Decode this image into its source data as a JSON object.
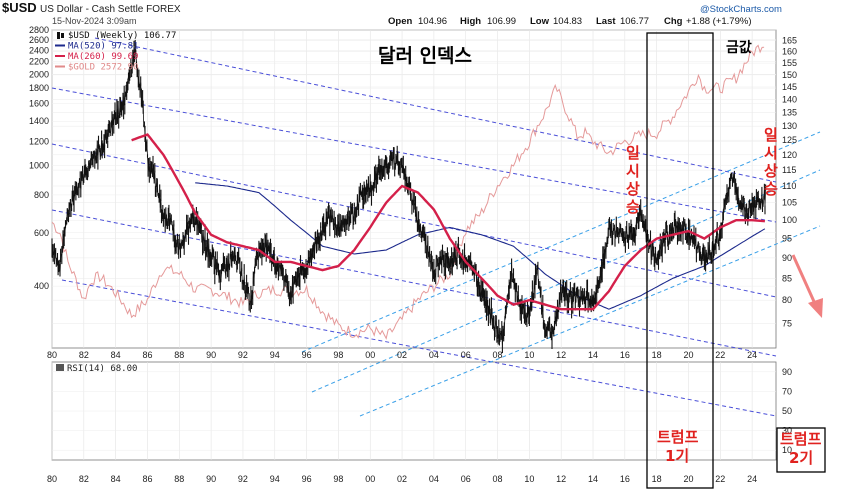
{
  "header": {
    "symbol": "$USD",
    "description": "US Dollar - Cash Settle FOREX",
    "date": "15-Nov-2024 3:09am",
    "brand": "@StockCharts.com",
    "ohlc": {
      "open_label": "Open",
      "open": "104.96",
      "high_label": "High",
      "high": "106.99",
      "low_label": "Low",
      "low": "104.83",
      "last_label": "Last",
      "last": "106.77",
      "chg_label": "Chg",
      "chg": "+1.88 (+1.79%)"
    }
  },
  "legend": [
    {
      "text": "$USD (Weekly) 106.77",
      "color": "#111111",
      "icon": "candle-icon"
    },
    {
      "text": "MA(520) 97.81",
      "color": "#1d2a8c",
      "icon": "line-icon"
    },
    {
      "text": "MA(260) 99.69",
      "color": "#d4204a",
      "icon": "line-icon"
    },
    {
      "text": "$GOLD 2572.90",
      "color": "#e08a8a",
      "icon": "line-icon"
    }
  ],
  "annotations": {
    "title": "달러 인덱스",
    "gold": "금값",
    "temp_rise_1": [
      "일",
      "시",
      "상",
      "승"
    ],
    "temp_rise_2": [
      "일",
      "시",
      "상",
      "승"
    ],
    "trump1": [
      "트럼프",
      "1기"
    ],
    "trump2": [
      "트럼프",
      "2기"
    ]
  },
  "rsi": {
    "label": "RSI(14) 68.00"
  },
  "colors": {
    "price": "#111111",
    "ma520": "#1d2a8c",
    "ma260": "#d4204a",
    "gold": "#e59a9a",
    "channel": "#4a4fd8",
    "uptrend": "#3aa0e8",
    "arrow": "#f08080",
    "annotation": "#e0221f"
  },
  "chart_data": {
    "type": "line",
    "title": "$USD US Dollar - Cash Settle FOREX (Weekly)",
    "x_axis": {
      "type": "year",
      "range": [
        1980,
        2025.5
      ],
      "ticks": [
        "80",
        "82",
        "84",
        "86",
        "88",
        "90",
        "92",
        "94",
        "96",
        "98",
        "00",
        "02",
        "04",
        "06",
        "08",
        "10",
        "12",
        "14",
        "16",
        "18",
        "20",
        "22",
        "24"
      ]
    },
    "y_left": {
      "label": "$GOLD",
      "scale": "log",
      "range": [
        250,
        2800
      ],
      "ticks": [
        400,
        600,
        800,
        1000,
        1200,
        1400,
        1600,
        1800,
        2000,
        2200,
        2400,
        2600,
        2800
      ]
    },
    "y_right": {
      "label": "$USD",
      "scale": "log",
      "range": [
        70,
        170
      ],
      "ticks": [
        75,
        80,
        85,
        90,
        95,
        100,
        105,
        110,
        115,
        120,
        125,
        130,
        135,
        140,
        145,
        150,
        155,
        160,
        165
      ]
    },
    "series": [
      {
        "name": "$USD (Weekly)",
        "axis": "right",
        "x": [
          1980,
          1980.5,
          1981,
          1981.5,
          1982,
          1982.5,
          1983,
          1983.5,
          1984,
          1984.5,
          1985.2,
          1985.6,
          1986,
          1986.5,
          1987,
          1987.5,
          1988,
          1988.5,
          1989,
          1989.5,
          1990,
          1990.5,
          1991,
          1991.5,
          1992,
          1992.5,
          1993,
          1993.5,
          1994,
          1994.5,
          1995,
          1995.5,
          1996,
          1996.5,
          1997,
          1997.5,
          1998,
          1998.5,
          1999,
          1999.5,
          2000,
          2000.5,
          2001,
          2001.5,
          2002,
          2002.5,
          2003,
          2003.5,
          2004,
          2004.5,
          2005,
          2005.5,
          2006,
          2006.5,
          2007,
          2007.5,
          2008,
          2008.3,
          2008.9,
          2009.3,
          2009.9,
          2010.5,
          2011,
          2011.5,
          2012,
          2012.5,
          2013,
          2013.5,
          2014,
          2014.5,
          2015,
          2015.5,
          2016,
          2016.5,
          2017,
          2017.5,
          2018,
          2018.5,
          2019,
          2019.5,
          2020,
          2020.5,
          2021,
          2021.5,
          2022,
          2022.5,
          2022.8,
          2023,
          2023.5,
          2024,
          2024.5,
          2024.87
        ],
        "values": [
          91,
          88,
          102,
          108,
          113,
          117,
          122,
          127,
          133,
          139,
          160,
          143,
          118,
          112,
          100,
          99,
          92,
          97,
          101,
          95,
          90,
          86,
          88,
          91,
          85,
          80,
          92,
          93,
          89,
          85,
          82,
          86,
          87,
          93,
          98,
          101,
          97,
          101,
          102,
          108,
          109,
          114,
          116,
          118,
          116,
          108,
          100,
          94,
          87,
          90,
          88,
          91,
          90,
          87,
          81,
          78,
          73,
          72,
          87,
          80,
          76,
          86,
          74,
          73,
          82,
          80,
          80,
          81,
          80,
          86,
          98,
          97,
          96,
          95,
          103,
          93,
          90,
          95,
          97,
          98,
          97,
          93,
          90,
          92,
          97,
          108,
          114,
          107,
          103,
          104,
          105,
          106.77
        ]
      },
      {
        "name": "MA(520)",
        "axis": "right",
        "x": [
          1989,
          1991,
          1993,
          1995,
          1997,
          1999,
          2001,
          2003,
          2005,
          2007,
          2009,
          2011,
          2013,
          2015,
          2017,
          2019,
          2021,
          2023,
          2024.87
        ],
        "values": [
          111,
          110,
          108,
          100,
          93,
          91,
          92,
          96,
          98,
          96,
          93,
          86,
          81,
          78,
          81,
          85,
          88,
          93,
          97.81
        ]
      },
      {
        "name": "MA(260)",
        "axis": "right",
        "x": [
          1985,
          1986,
          1987,
          1988,
          1989,
          1990,
          1991,
          1992,
          1993,
          1994,
          1995,
          1996,
          1997,
          1998,
          1999,
          2000,
          2001,
          2002,
          2003,
          2004,
          2005,
          2006,
          2007,
          2008,
          2009,
          2010,
          2011,
          2012,
          2013,
          2014,
          2015,
          2016,
          2017,
          2018,
          2019,
          2020,
          2021,
          2022,
          2023,
          2024,
          2024.87
        ],
        "values": [
          125,
          127,
          120,
          111,
          102,
          96,
          94,
          93,
          92,
          89,
          89,
          88,
          87,
          88,
          92,
          98,
          105,
          110,
          108,
          103,
          95,
          89,
          85,
          81,
          79,
          80,
          79,
          78,
          78,
          78,
          82,
          88,
          92,
          95,
          96,
          97,
          95,
          98,
          100,
          100,
          99.69
        ]
      },
      {
        "name": "$GOLD",
        "axis": "left",
        "x": [
          1980,
          1980.5,
          1981,
          1982,
          1982.5,
          1983,
          1984,
          1985,
          1986,
          1987,
          1988,
          1989,
          1990,
          1991,
          1992,
          1993,
          1994,
          1995,
          1996,
          1997,
          1998,
          1999,
          2000,
          2001,
          2002,
          2003,
          2004,
          2005,
          2006,
          2007,
          2008,
          2009,
          2010,
          2011,
          2011.7,
          2012,
          2013,
          2013.5,
          2014,
          2015,
          2016,
          2017,
          2018,
          2019,
          2020,
          2020.6,
          2021,
          2022,
          2023,
          2024,
          2024.87
        ],
        "values": [
          650,
          600,
          480,
          360,
          420,
          430,
          380,
          320,
          360,
          460,
          440,
          390,
          390,
          370,
          350,
          380,
          390,
          385,
          390,
          330,
          295,
          280,
          290,
          270,
          310,
          360,
          400,
          440,
          610,
          700,
          860,
          1000,
          1200,
          1500,
          1800,
          1650,
          1250,
          1280,
          1200,
          1100,
          1200,
          1260,
          1280,
          1450,
          1750,
          2000,
          1800,
          1800,
          1950,
          2350,
          2572.9
        ]
      }
    ]
  }
}
